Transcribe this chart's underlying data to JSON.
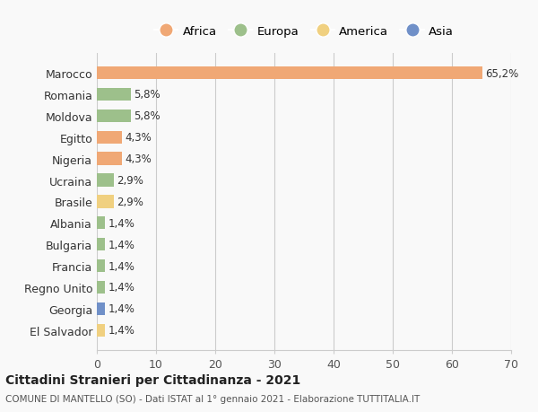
{
  "countries": [
    "Marocco",
    "Romania",
    "Moldova",
    "Egitto",
    "Nigeria",
    "Ucraina",
    "Brasile",
    "Albania",
    "Bulgaria",
    "Francia",
    "Regno Unito",
    "Georgia",
    "El Salvador"
  ],
  "values": [
    65.2,
    5.8,
    5.8,
    4.3,
    4.3,
    2.9,
    2.9,
    1.4,
    1.4,
    1.4,
    1.4,
    1.4,
    1.4
  ],
  "labels": [
    "65,2%",
    "5,8%",
    "5,8%",
    "4,3%",
    "4,3%",
    "2,9%",
    "2,9%",
    "1,4%",
    "1,4%",
    "1,4%",
    "1,4%",
    "1,4%",
    "1,4%"
  ],
  "continents": [
    "Africa",
    "Europa",
    "Europa",
    "Africa",
    "Africa",
    "Europa",
    "America",
    "Europa",
    "Europa",
    "Europa",
    "Europa",
    "Asia",
    "America"
  ],
  "colors": {
    "Africa": "#F0A875",
    "Europa": "#9DC08B",
    "America": "#F0D080",
    "Asia": "#7090C8"
  },
  "legend_order": [
    "Africa",
    "Europa",
    "America",
    "Asia"
  ],
  "title": "Cittadini Stranieri per Cittadinanza - 2021",
  "subtitle": "COMUNE DI MANTELLO (SO) - Dati ISTAT al 1° gennaio 2021 - Elaborazione TUTTITALIA.IT",
  "xlim": [
    0,
    70
  ],
  "xticks": [
    0,
    10,
    20,
    30,
    40,
    50,
    60,
    70
  ],
  "bg_color": "#f9f9f9",
  "grid_color": "#cccccc"
}
